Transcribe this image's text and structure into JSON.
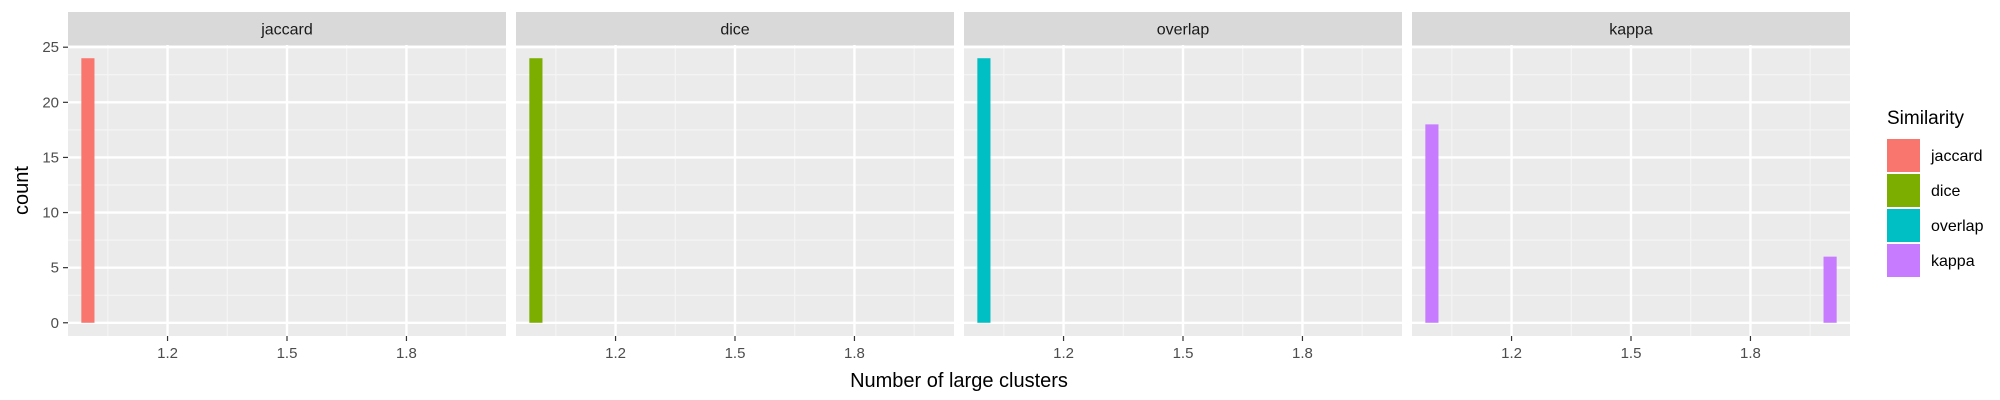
{
  "chart_data": {
    "type": "bar",
    "xlabel": "Number of large clusters",
    "ylabel": "count",
    "x_ticks": [
      1.2,
      1.5,
      1.8
    ],
    "y_ticks": [
      0,
      5,
      10,
      15,
      20,
      25
    ],
    "xlim": [
      0.95,
      2.05
    ],
    "ylim": [
      -1.2,
      25.2
    ],
    "bar_width": 0.033,
    "grid": true,
    "legend": {
      "title": "Similarity",
      "position": "right",
      "entries": [
        "jaccard",
        "dice",
        "overlap",
        "kappa"
      ]
    },
    "colors": {
      "jaccard": "#F8766D",
      "dice": "#7CAE00",
      "overlap": "#00BFC4",
      "kappa": "#C77CFF"
    },
    "facets": [
      {
        "name": "jaccard",
        "bars": [
          {
            "x": 1,
            "count": 24
          }
        ]
      },
      {
        "name": "dice",
        "bars": [
          {
            "x": 1,
            "count": 24
          }
        ]
      },
      {
        "name": "overlap",
        "bars": [
          {
            "x": 1,
            "count": 24
          }
        ]
      },
      {
        "name": "kappa",
        "bars": [
          {
            "x": 1,
            "count": 18
          },
          {
            "x": 2,
            "count": 6
          }
        ]
      }
    ]
  }
}
